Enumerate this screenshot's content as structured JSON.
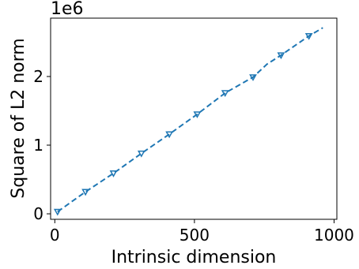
{
  "chart_data": {
    "type": "line",
    "xlabel": "Intrinsic dimension",
    "ylabel": "Square of L2 norm",
    "y_scale_label": "1e6",
    "xlim": [
      -15,
      1010
    ],
    "ylim": [
      -0.08,
      2.85
    ],
    "x_ticks": [
      0,
      500,
      1000
    ],
    "x_tick_labels": [
      "0",
      "500",
      "1000"
    ],
    "y_ticks": [
      0,
      1,
      2
    ],
    "y_tick_labels": [
      "0",
      "1",
      "2"
    ],
    "grid": false,
    "color": "#1f77b4",
    "line_style": "dashed",
    "series": [
      {
        "x": [
          10,
          110,
          210,
          310,
          410,
          510,
          610,
          710,
          760,
          810,
          910,
          960
        ],
        "y": [
          0.03,
          0.32,
          0.59,
          0.88,
          1.16,
          1.45,
          1.76,
          1.99,
          2.18,
          2.31,
          2.59,
          2.71
        ]
      }
    ],
    "markers": {
      "shape": "triangle-down-hollow",
      "x": [
        10,
        110,
        210,
        310,
        410,
        510,
        610,
        710,
        810,
        910
      ],
      "y": [
        0.03,
        0.32,
        0.59,
        0.88,
        1.16,
        1.45,
        1.76,
        1.99,
        2.31,
        2.59
      ]
    }
  }
}
